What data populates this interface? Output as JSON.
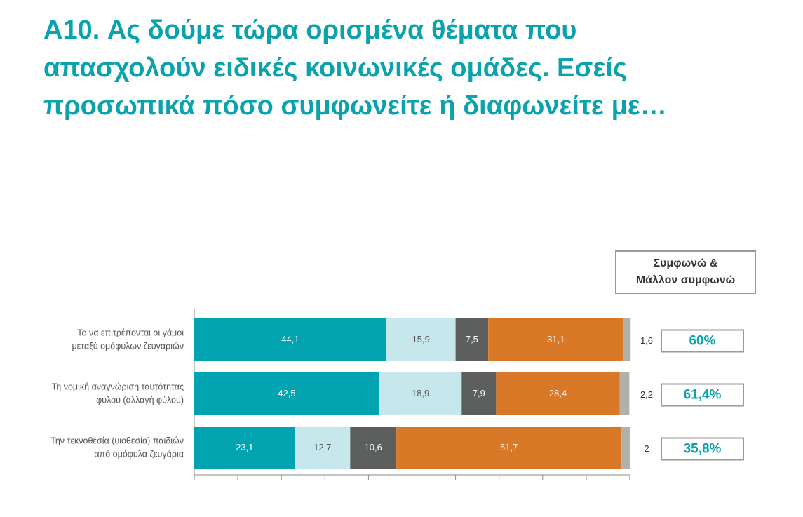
{
  "title": {
    "lines": [
      "A10. Ας δούμε τώρα ορισμένα θέματα που",
      "απασχολούν ειδικές κοινωνικές ομάδες. Εσείς",
      "προσωπικά πόσο συμφωνείτε ή διαφωνείτε με…"
    ]
  },
  "agree_header": {
    "line1": "Συμφωνώ &",
    "line2": "Μάλλον συμφωνώ"
  },
  "chart_data": {
    "type": "bar",
    "orientation": "horizontal",
    "stacked": true,
    "xlim": [
      0,
      100
    ],
    "grid": false,
    "legend": "none",
    "categories": [
      [
        "Το να επιτρέπονται οι γάμοι",
        "μεταξύ ομόφυλων ζευγαριών"
      ],
      [
        "Τη νομική αναγνώριση ταυτότητας",
        "φύλου (αλλαγή φύλου)"
      ],
      [
        "Την τεκνοθεσία (υιοθεσία) παιδιών",
        "από ομόφυλα ζευγάρια"
      ]
    ],
    "series": [
      {
        "values": [
          44.1,
          42.5,
          23.1
        ],
        "labels": [
          "44,1",
          "42,5",
          "23,1"
        ],
        "color": "#00a3af",
        "text_color": "#ffffff"
      },
      {
        "values": [
          15.9,
          18.9,
          12.7
        ],
        "labels": [
          "15,9",
          "18,9",
          "12,7"
        ],
        "color": "#c6e8ec",
        "text_color": "#555555"
      },
      {
        "values": [
          7.5,
          7.9,
          10.6
        ],
        "labels": [
          "7,5",
          "7,9",
          "10,6"
        ],
        "color": "#5d5e5e",
        "text_color": "#ffffff"
      },
      {
        "values": [
          31.1,
          28.4,
          51.7
        ],
        "labels": [
          "31,1",
          "28,4",
          "51,7"
        ],
        "color": "#d97826",
        "text_color": "#ffffff"
      },
      {
        "values": [
          1.6,
          2.2,
          2
        ],
        "labels": [
          "1,6",
          "2,2",
          "2"
        ],
        "color": "#b3b0aa",
        "text_color": "#333333",
        "label_outside": true
      }
    ],
    "agree_totals": [
      "60%",
      "61,4%",
      "35,8%"
    ]
  }
}
